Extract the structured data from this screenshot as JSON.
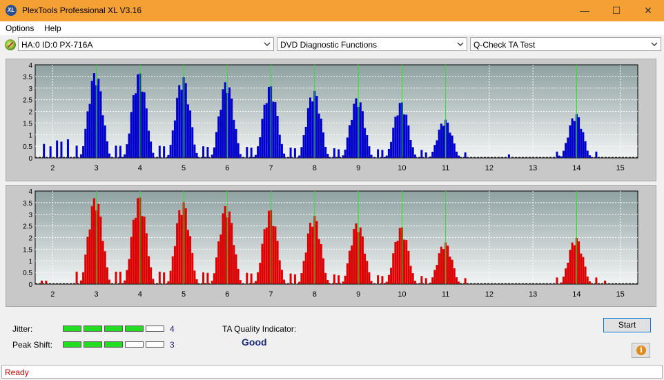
{
  "window": {
    "title": "PlexTools Professional XL V3.16",
    "logo_text": "XL",
    "minimize": "—",
    "maximize": "☐",
    "close": "✕"
  },
  "menu": [
    "Options",
    "Help"
  ],
  "toolbar": {
    "drive": "HA:0 ID:0  PX-716A",
    "function": "DVD Diagnostic Functions",
    "test": "Q-Check TA Test"
  },
  "chart_data": [
    {
      "type": "bar",
      "name_hint": "land",
      "color": "#0000cc",
      "ylim": [
        0,
        4
      ],
      "y_ticks": [
        "0",
        "0.5",
        "1",
        "1.5",
        "2",
        "2.5",
        "3",
        "3.5",
        "4"
      ],
      "x_ticks": [
        "2",
        "3",
        "4",
        "5",
        "6",
        "7",
        "8",
        "9",
        "10",
        "11",
        "12",
        "13",
        "14",
        "15"
      ],
      "xlim": [
        1.6,
        15.4
      ],
      "markers": [
        3,
        4,
        5,
        6,
        7,
        8,
        9,
        10,
        11,
        14
      ],
      "peaks": [
        {
          "x": 3,
          "h": 3.7
        },
        {
          "x": 4,
          "h": 3.65
        },
        {
          "x": 5,
          "h": 3.5
        },
        {
          "x": 6,
          "h": 3.3
        },
        {
          "x": 7,
          "h": 3.1
        },
        {
          "x": 8,
          "h": 2.9
        },
        {
          "x": 9,
          "h": 2.6
        },
        {
          "x": 10,
          "h": 2.4
        },
        {
          "x": 11,
          "h": 1.65
        },
        {
          "x": 14,
          "h": 1.9
        }
      ],
      "noise": [
        [
          1.8,
          0.6
        ],
        [
          1.95,
          0.5
        ],
        [
          2.1,
          0.75
        ],
        [
          2.2,
          0.7
        ],
        [
          2.35,
          0.8
        ],
        [
          12.45,
          0.15
        ],
        [
          13.6,
          0.1
        ]
      ]
    },
    {
      "type": "bar",
      "name_hint": "groove",
      "color": "#dd0000",
      "ylim": [
        0,
        4
      ],
      "y_ticks": [
        "0",
        "0.5",
        "1",
        "1.5",
        "2",
        "2.5",
        "3",
        "3.5",
        "4"
      ],
      "x_ticks": [
        "2",
        "3",
        "4",
        "5",
        "6",
        "7",
        "8",
        "9",
        "10",
        "11",
        "12",
        "13",
        "14",
        "15"
      ],
      "xlim": [
        1.6,
        15.4
      ],
      "markers": [
        3,
        4,
        5,
        6,
        7,
        8,
        9,
        10,
        11,
        14
      ],
      "peaks": [
        {
          "x": 3,
          "h": 3.75
        },
        {
          "x": 4,
          "h": 3.75
        },
        {
          "x": 5,
          "h": 3.55
        },
        {
          "x": 6,
          "h": 3.4
        },
        {
          "x": 7,
          "h": 3.2
        },
        {
          "x": 8,
          "h": 2.95
        },
        {
          "x": 9,
          "h": 2.65
        },
        {
          "x": 10,
          "h": 2.45
        },
        {
          "x": 11,
          "h": 1.8
        },
        {
          "x": 14,
          "h": 2.0
        }
      ],
      "noise": [
        [
          1.75,
          0.15
        ],
        [
          1.85,
          0.15
        ],
        [
          14.65,
          0.15
        ]
      ]
    }
  ],
  "quality": {
    "jitter_label": "Jitter:",
    "jitter_value": "4",
    "jitter_level": 4,
    "peak_label": "Peak Shift:",
    "peak_value": "3",
    "peak_level": 3,
    "max_level": 5,
    "ta_label": "TA Quality Indicator:",
    "ta_value": "Good",
    "start_label": "Start",
    "info_icon": "i"
  },
  "status": "Ready"
}
